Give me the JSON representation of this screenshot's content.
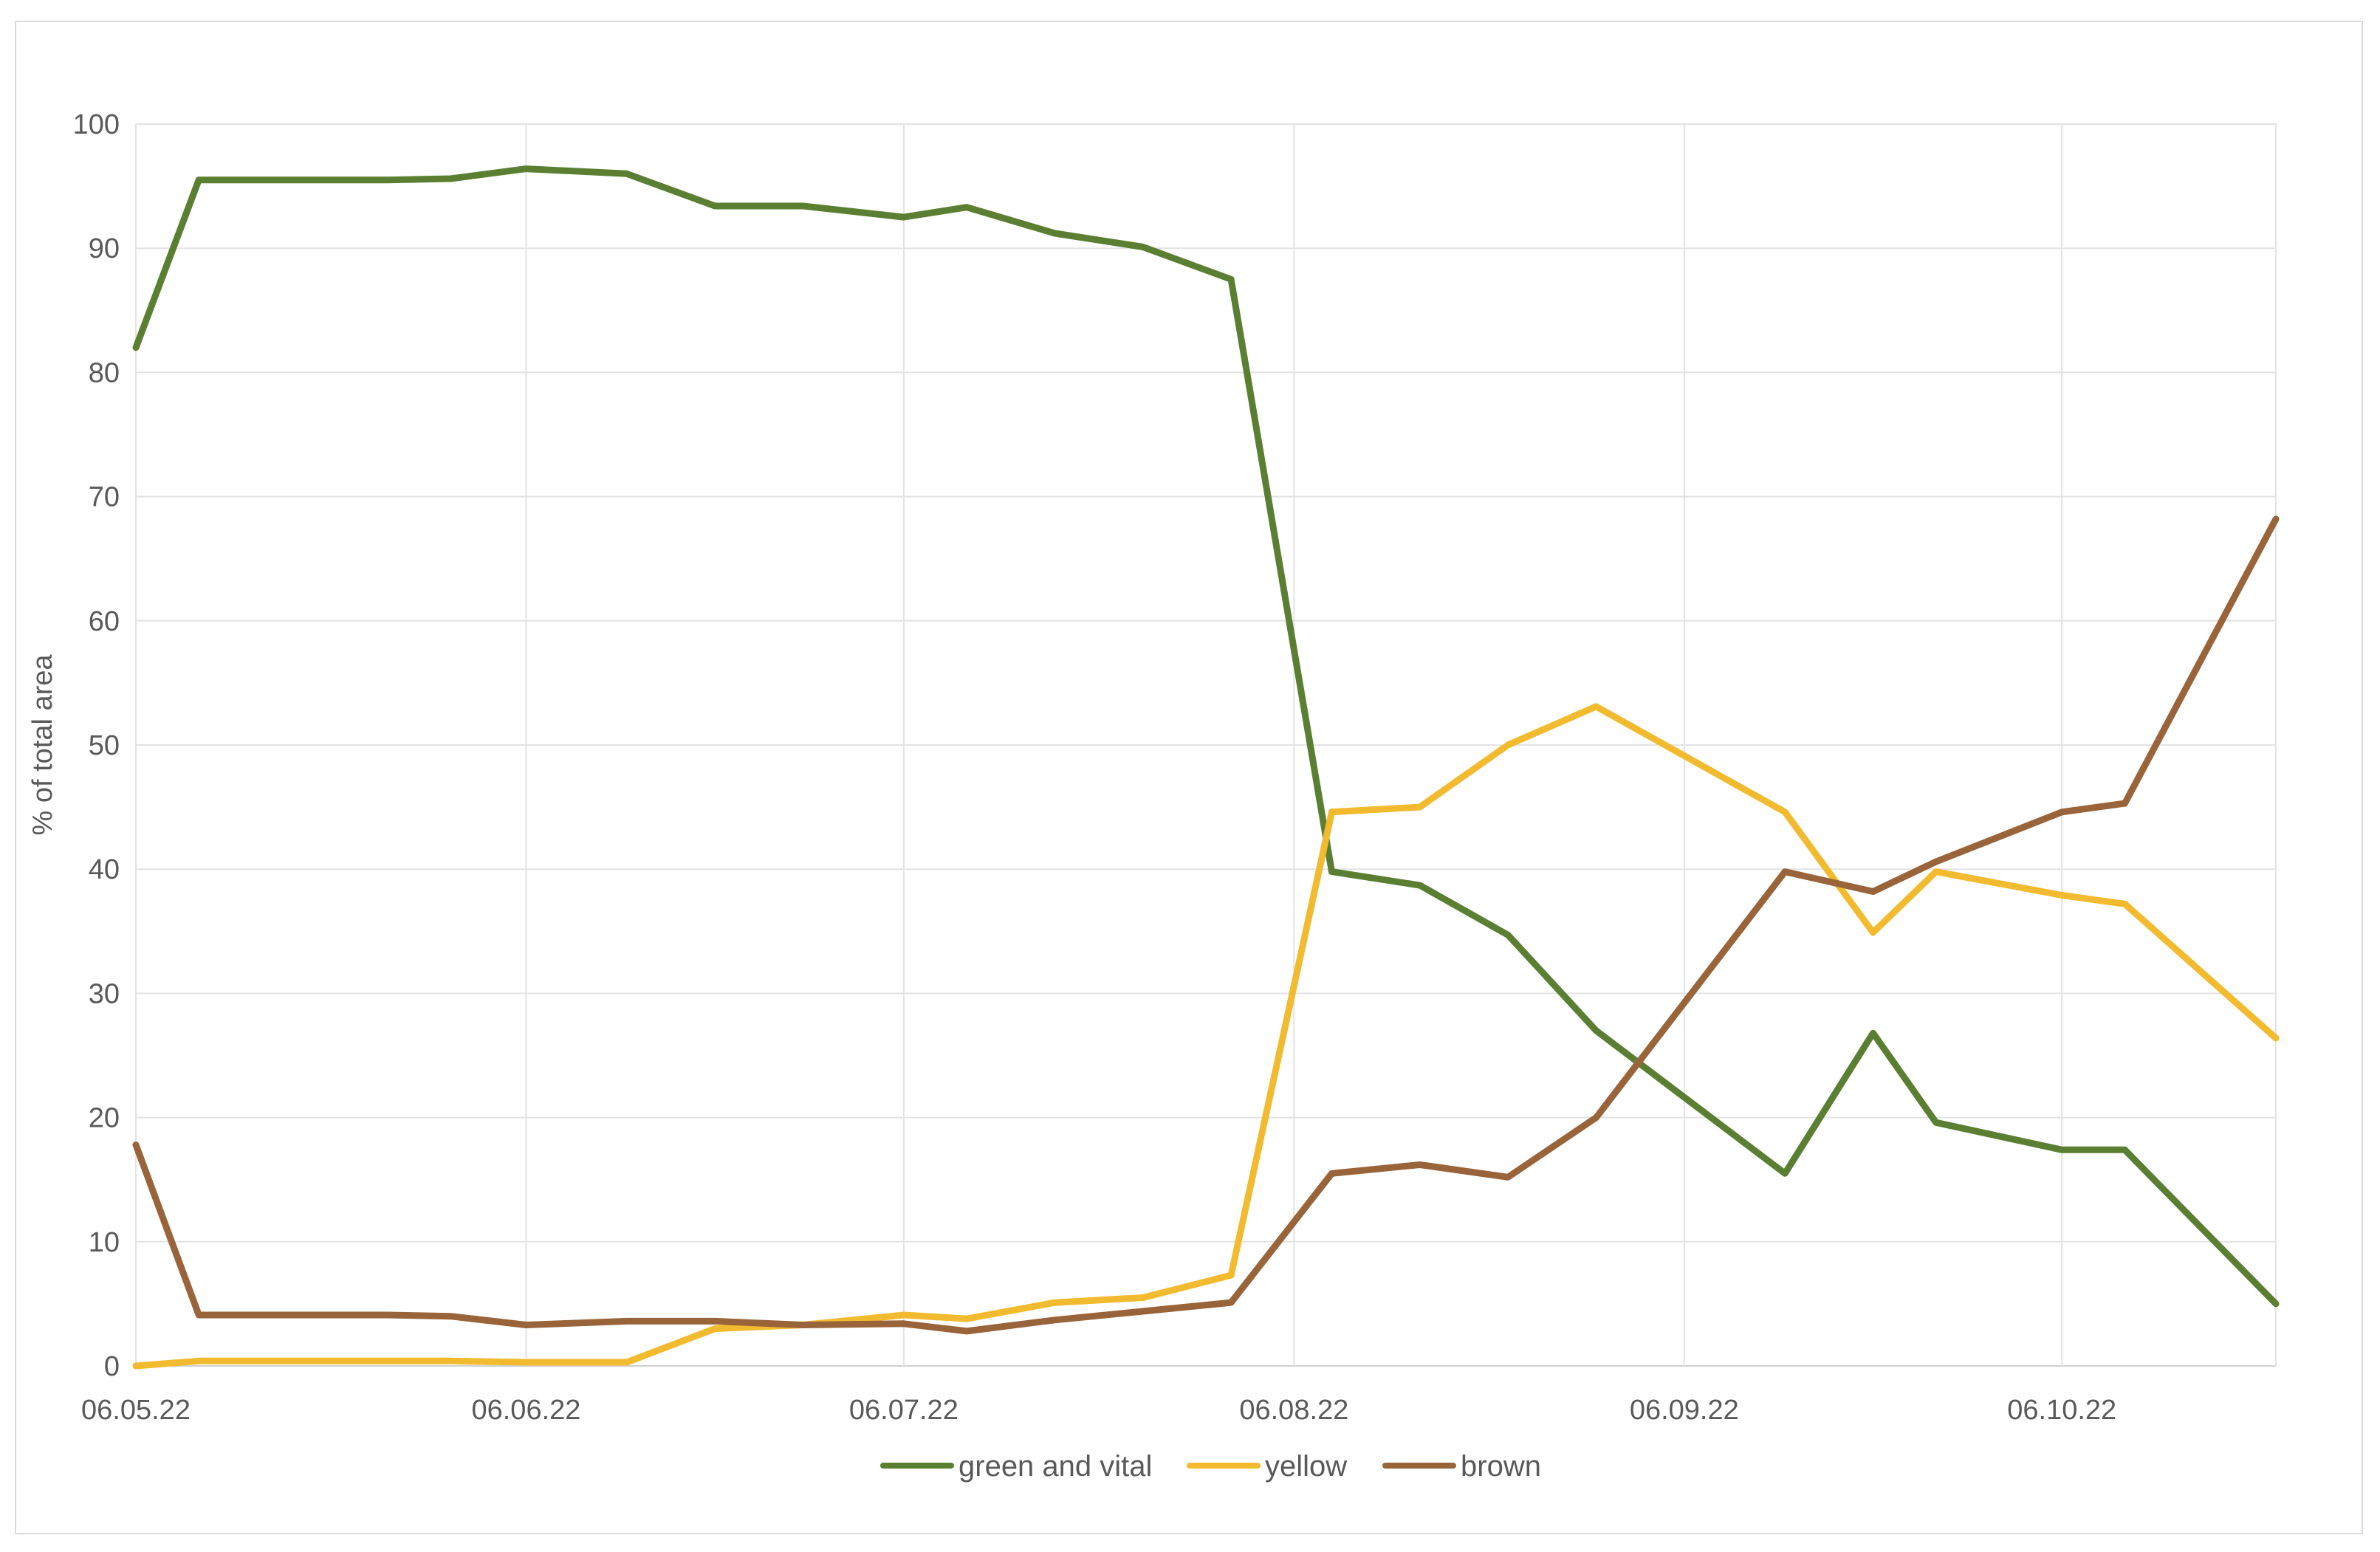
{
  "chart_data": {
    "type": "line",
    "title": "",
    "xlabel": "",
    "ylabel": "% of total area",
    "ylim": [
      0,
      100
    ],
    "yticks": [
      0,
      10,
      20,
      30,
      40,
      50,
      60,
      70,
      80,
      90,
      100
    ],
    "xrange": [
      "2022-05-06",
      "2022-10-23"
    ],
    "xtick_labels": [
      {
        "date": "2022-05-06",
        "label": "06.05.22"
      },
      {
        "date": "2022-06-06",
        "label": "06.06.22"
      },
      {
        "date": "2022-07-06",
        "label": "06.07.22"
      },
      {
        "date": "2022-08-06",
        "label": "06.08.22"
      },
      {
        "date": "2022-09-06",
        "label": "06.09.22"
      },
      {
        "date": "2022-10-06",
        "label": "06.10.22"
      }
    ],
    "grid": true,
    "legend_position": "bottom",
    "x": [
      "2022-05-06",
      "2022-05-11",
      "2022-05-21",
      "2022-05-26",
      "2022-05-31",
      "2022-06-06",
      "2022-06-14",
      "2022-06-21",
      "2022-06-28",
      "2022-07-06",
      "2022-07-11",
      "2022-07-18",
      "2022-07-25",
      "2022-08-01",
      "2022-08-09",
      "2022-08-16",
      "2022-08-23",
      "2022-08-30",
      "2022-09-14",
      "2022-09-21",
      "2022-09-26",
      "2022-10-06",
      "2022-10-11",
      "2022-10-23"
    ],
    "series": [
      {
        "name": "green and vital",
        "color": "#5b7f32",
        "values": [
          82,
          95.5,
          95.5,
          95.5,
          95.6,
          96.4,
          96,
          93.4,
          93.4,
          92.5,
          93.3,
          91.2,
          90.1,
          87.5,
          39.8,
          38.7,
          34.7,
          27,
          15.5,
          26.8,
          19.6,
          17.4,
          17.4,
          5
        ]
      },
      {
        "name": "yellow",
        "color": "#f2bb2f",
        "values": [
          0,
          0.4,
          0.4,
          0.4,
          0.4,
          0.3,
          0.3,
          3,
          3.3,
          4.1,
          3.8,
          5.1,
          5.5,
          7.3,
          44.6,
          45,
          50,
          53.1,
          44.6,
          34.9,
          39.8,
          37.9,
          37.2,
          26.4
        ]
      },
      {
        "name": "brown",
        "color": "#99643a",
        "values": [
          17.8,
          4.1,
          4.1,
          4.1,
          4,
          3.3,
          3.6,
          3.6,
          3.3,
          3.4,
          2.8,
          3.7,
          4.4,
          5.1,
          15.5,
          16.2,
          15.2,
          20,
          39.8,
          38.2,
          40.6,
          44.6,
          45.3,
          68.2
        ]
      }
    ]
  }
}
